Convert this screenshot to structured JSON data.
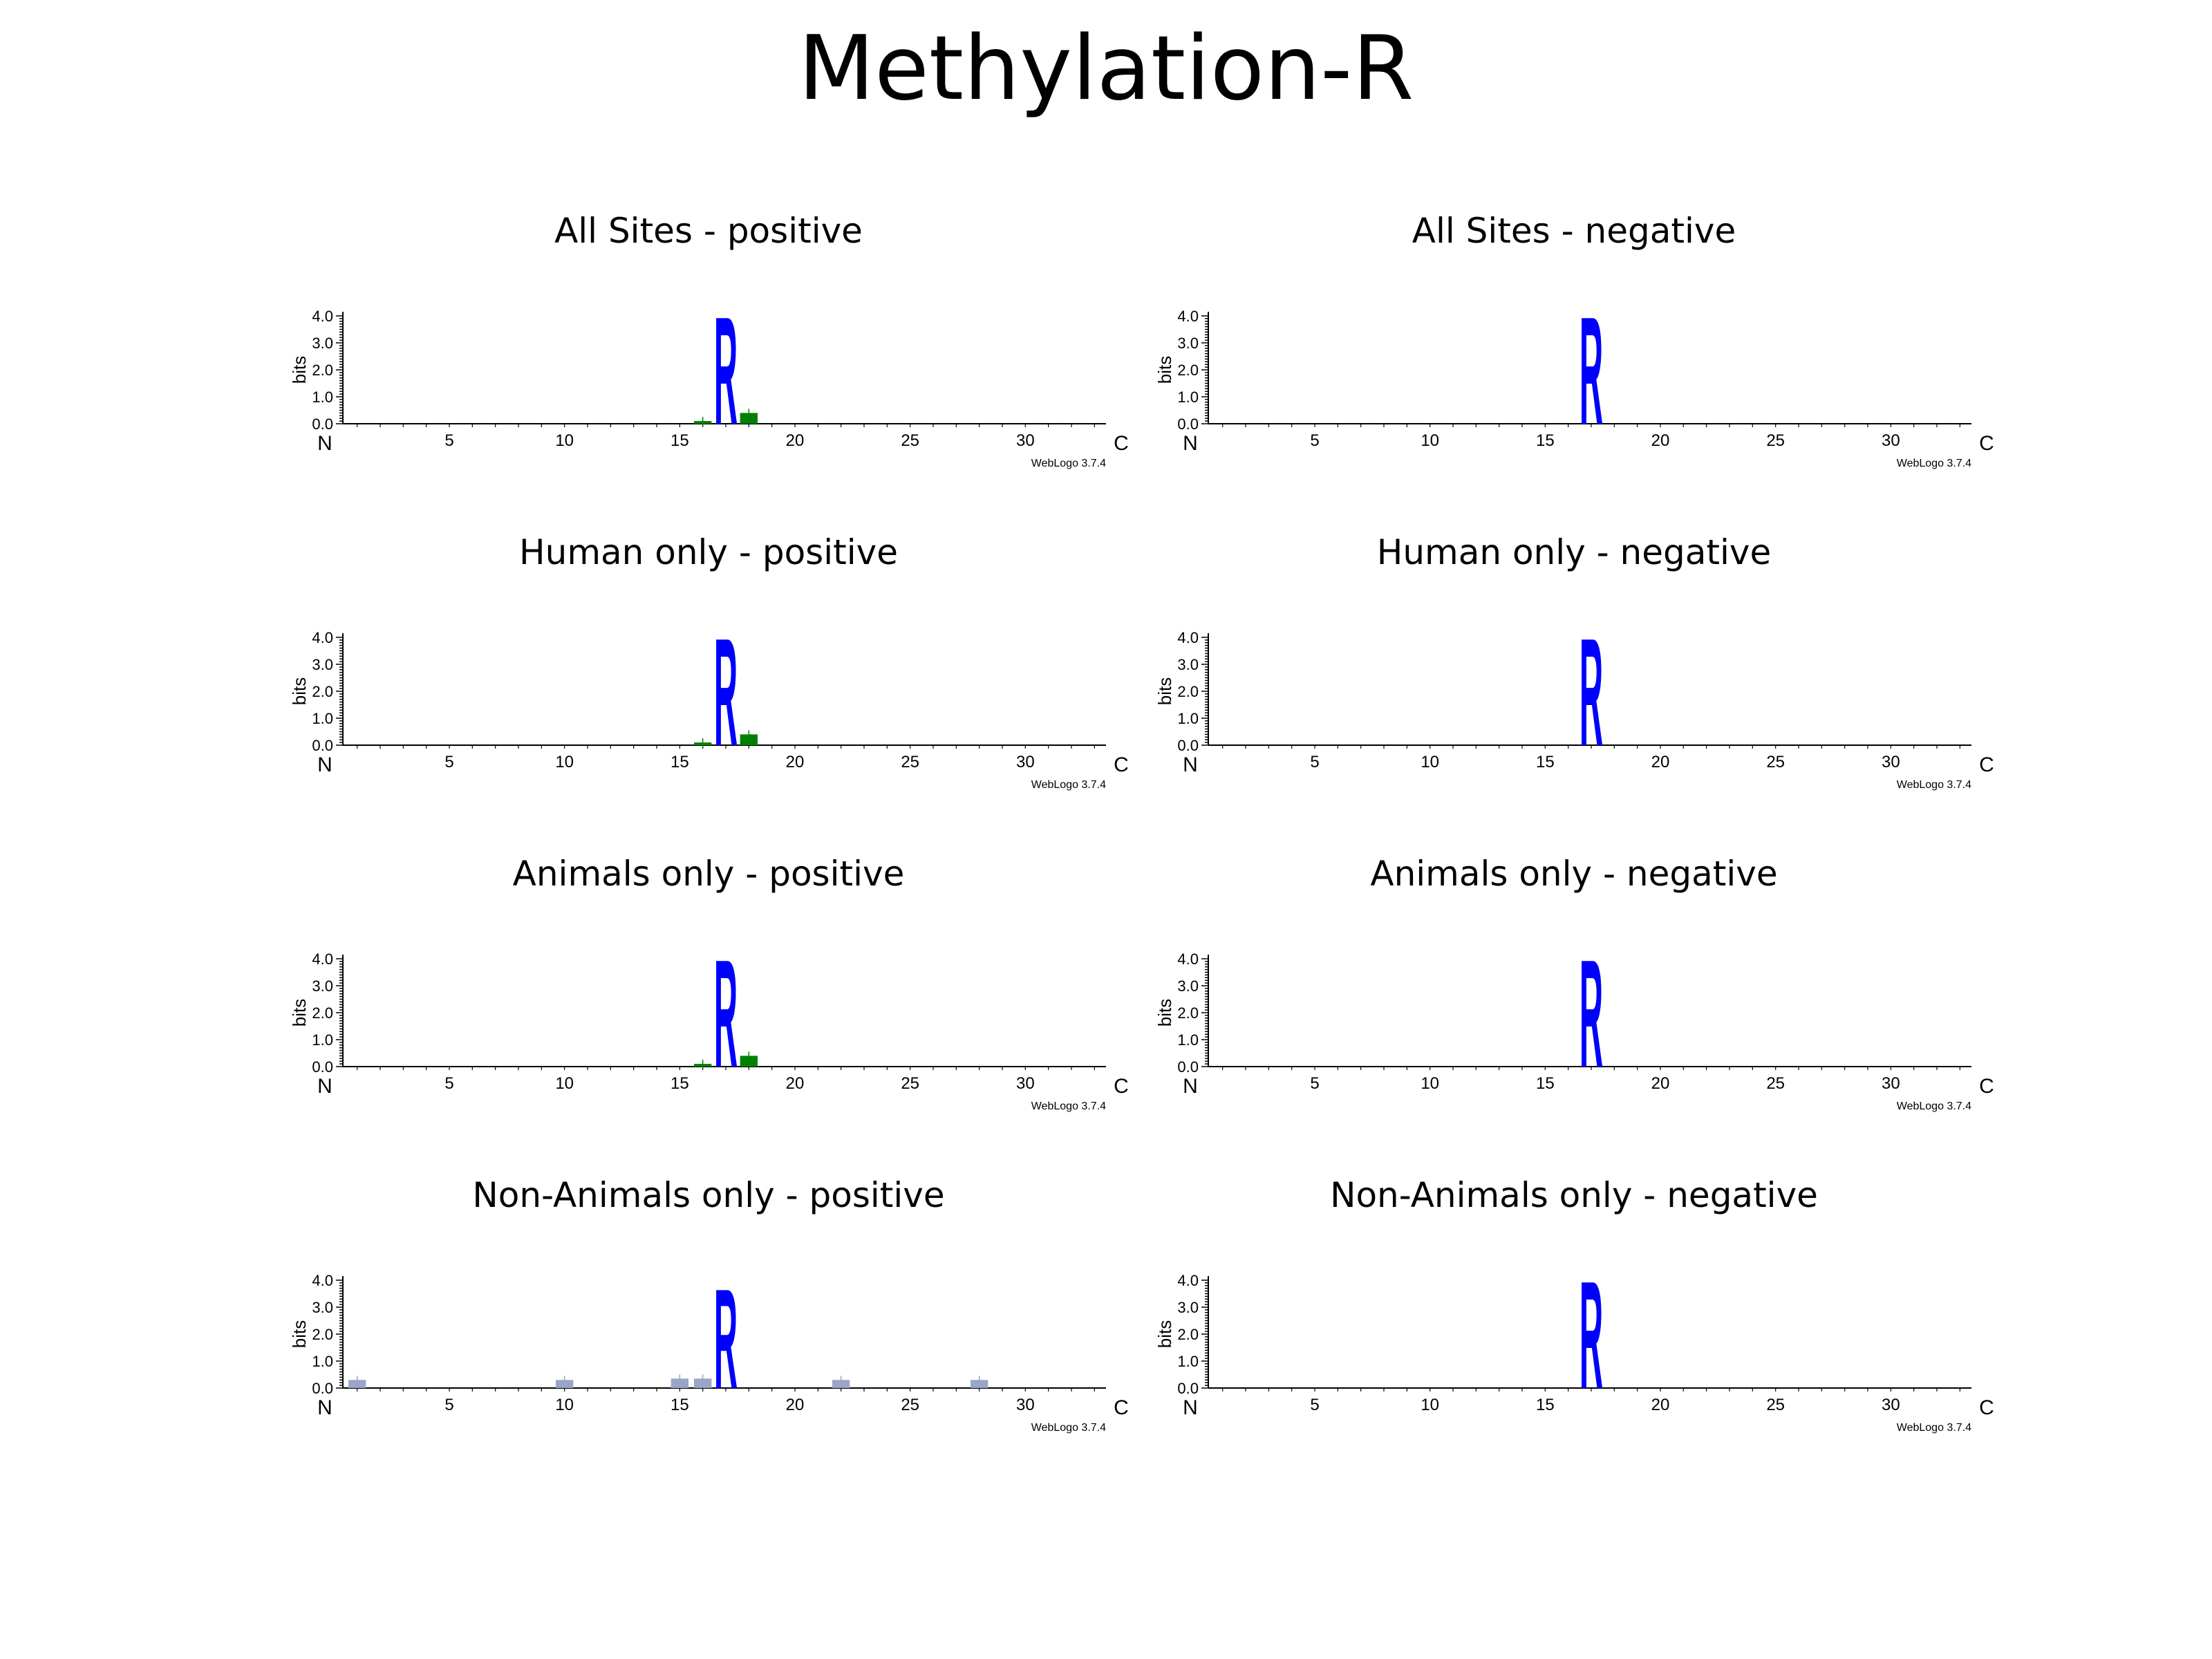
{
  "title": "Methylation-R",
  "colors": {
    "R": "#0000ff",
    "G": "#008000",
    "minor": "#9aa6c8"
  },
  "shared_axes": {
    "ylabel": "bits",
    "yticks": [
      "0.0",
      "1.0",
      "2.0",
      "3.0",
      "4.0"
    ],
    "xticks": [
      "5",
      "10",
      "15",
      "20",
      "25",
      "30"
    ],
    "n_label": "N",
    "c_label": "C",
    "footer": "WebLogo 3.7.4"
  },
  "chart_data": [
    {
      "type": "sequence-logo",
      "title": "All Sites - positive",
      "positions": 33,
      "ylim": [
        0,
        4.0
      ],
      "stacks": [
        {
          "pos": 17,
          "letter": "R",
          "bits": 4.1,
          "color": "#0000ff"
        },
        {
          "pos": 18,
          "letter": "G",
          "bits": 0.4,
          "color": "#008000"
        },
        {
          "pos": 16,
          "letter": "G",
          "bits": 0.1,
          "color": "#008000"
        }
      ]
    },
    {
      "type": "sequence-logo",
      "title": "All Sites - negative",
      "positions": 33,
      "ylim": [
        0,
        4.0
      ],
      "stacks": [
        {
          "pos": 17,
          "letter": "R",
          "bits": 4.1,
          "color": "#0000ff"
        }
      ]
    },
    {
      "type": "sequence-logo",
      "title": "Human only - positive",
      "positions": 33,
      "ylim": [
        0,
        4.0
      ],
      "stacks": [
        {
          "pos": 17,
          "letter": "R",
          "bits": 4.1,
          "color": "#0000ff"
        },
        {
          "pos": 18,
          "letter": "G",
          "bits": 0.4,
          "color": "#008000"
        },
        {
          "pos": 16,
          "letter": "G",
          "bits": 0.1,
          "color": "#008000"
        }
      ]
    },
    {
      "type": "sequence-logo",
      "title": "Human only - negative",
      "positions": 33,
      "ylim": [
        0,
        4.0
      ],
      "stacks": [
        {
          "pos": 17,
          "letter": "R",
          "bits": 4.1,
          "color": "#0000ff"
        }
      ]
    },
    {
      "type": "sequence-logo",
      "title": "Animals only - positive",
      "positions": 33,
      "ylim": [
        0,
        4.0
      ],
      "stacks": [
        {
          "pos": 17,
          "letter": "R",
          "bits": 4.1,
          "color": "#0000ff"
        },
        {
          "pos": 18,
          "letter": "G",
          "bits": 0.4,
          "color": "#008000"
        },
        {
          "pos": 16,
          "letter": "G",
          "bits": 0.1,
          "color": "#008000"
        }
      ]
    },
    {
      "type": "sequence-logo",
      "title": "Animals only - negative",
      "positions": 33,
      "ylim": [
        0,
        4.0
      ],
      "stacks": [
        {
          "pos": 17,
          "letter": "R",
          "bits": 4.1,
          "color": "#0000ff"
        }
      ]
    },
    {
      "type": "sequence-logo",
      "title": "Non-Animals only - positive",
      "positions": 33,
      "ylim": [
        0,
        4.0
      ],
      "stacks": [
        {
          "pos": 17,
          "letter": "R",
          "bits": 3.8,
          "color": "#0000ff"
        },
        {
          "pos": 1,
          "letter": "G",
          "bits": 0.3,
          "color": "#9aa6c8"
        },
        {
          "pos": 10,
          "letter": "G",
          "bits": 0.3,
          "color": "#9aa6c8"
        },
        {
          "pos": 15,
          "letter": "G",
          "bits": 0.35,
          "color": "#9aa6c8"
        },
        {
          "pos": 16,
          "letter": "G",
          "bits": 0.35,
          "color": "#9aa6c8"
        },
        {
          "pos": 22,
          "letter": "G",
          "bits": 0.3,
          "color": "#9aa6c8"
        },
        {
          "pos": 28,
          "letter": "G",
          "bits": 0.3,
          "color": "#9aa6c8"
        }
      ]
    },
    {
      "type": "sequence-logo",
      "title": "Non-Animals only - negative",
      "positions": 33,
      "ylim": [
        0,
        4.0
      ],
      "stacks": [
        {
          "pos": 17,
          "letter": "R",
          "bits": 4.1,
          "color": "#0000ff"
        }
      ]
    }
  ]
}
